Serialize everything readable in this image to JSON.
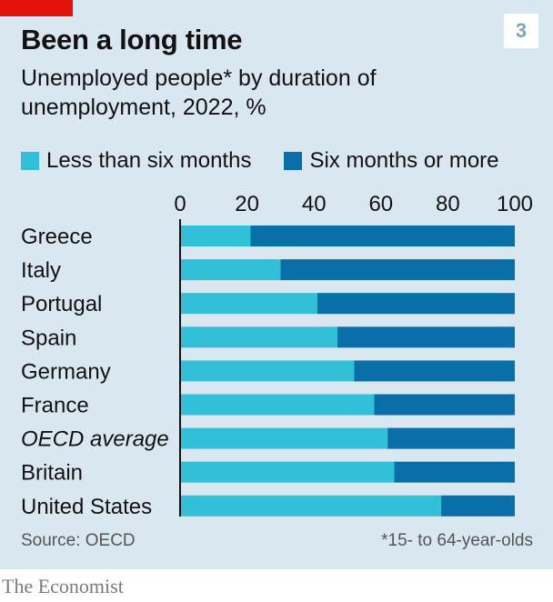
{
  "badge": "3",
  "colors": {
    "background": "#d8e7f0",
    "accent": "#e3120b",
    "less": "#32c0d8",
    "more": "#0a6ea8"
  },
  "chart_data": {
    "type": "bar",
    "orientation": "horizontal",
    "stacked": true,
    "title": "Been a long time",
    "subtitle": "Unemployed people* by duration of unemployment, 2022, %",
    "categories": [
      "Greece",
      "Italy",
      "Portugal",
      "Spain",
      "Germany",
      "France",
      "OECD average",
      "Britain",
      "United States"
    ],
    "series": [
      {
        "name": "Less than six months",
        "values": [
          21,
          30,
          41,
          47,
          52,
          58,
          62,
          64,
          78
        ]
      },
      {
        "name": "Six months or more",
        "values": [
          79,
          70,
          59,
          53,
          48,
          42,
          38,
          36,
          22
        ]
      }
    ],
    "xlim": [
      0,
      100
    ],
    "xticks": [
      "0",
      "20",
      "40",
      "60",
      "80",
      "100"
    ],
    "legend_position": "top",
    "source": "Source: OECD",
    "footnote": "*15- to 64-year-olds"
  },
  "brand": "The Economist"
}
